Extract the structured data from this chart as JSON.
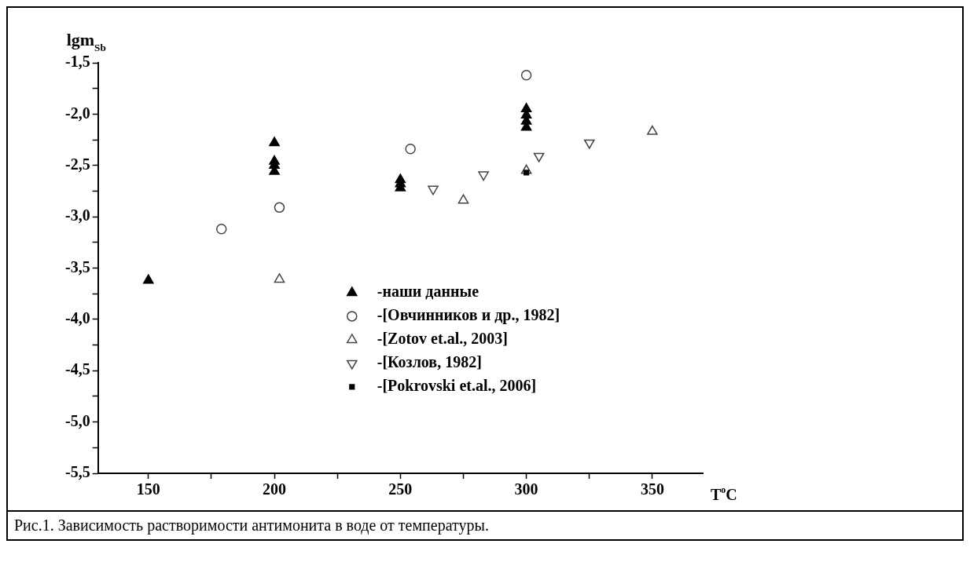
{
  "chart_data": {
    "type": "scatter",
    "xlabel": "T$^{o}$C",
    "ylabel": "lgm$_{Sb}$",
    "xlim": [
      130,
      370
    ],
    "ylim": [
      -5.5,
      -1.5
    ],
    "xticks": [
      150,
      {
        "value": 175,
        "label": null
      },
      200,
      {
        "value": 225,
        "label": null
      },
      250,
      {
        "value": 275,
        "label": null
      },
      300,
      {
        "value": 325,
        "label": null
      },
      350
    ],
    "yticks": [
      {
        "value": -5.5,
        "label": "-5,5"
      },
      {
        "value": -5.25,
        "label": null
      },
      {
        "value": -5,
        "label": "-5,0"
      },
      {
        "value": -4.75,
        "label": null
      },
      {
        "value": -4.5,
        "label": "-4,5"
      },
      {
        "value": -4.25,
        "label": null
      },
      {
        "value": -4,
        "label": "-4,0"
      },
      {
        "value": -3.75,
        "label": null
      },
      {
        "value": -3.5,
        "label": "-3,5"
      },
      {
        "value": -3.25,
        "label": null
      },
      {
        "value": -3,
        "label": "-3,0"
      },
      {
        "value": -2.75,
        "label": null
      },
      {
        "value": -2.5,
        "label": "-2,5"
      },
      {
        "value": -2.25,
        "label": null
      },
      {
        "value": -2,
        "label": "-2,0"
      },
      {
        "value": -1.75,
        "label": null
      },
      {
        "value": -1.5,
        "label": "-1,5"
      }
    ],
    "grid": false,
    "legend": "bottom",
    "series": [
      {
        "name": "-наши данные",
        "color": "#000000",
        "marker": "triangle",
        "x": [
          150,
          200,
          200,
          200,
          200,
          250,
          250,
          250,
          300,
          300,
          300,
          300
        ],
        "values": [
          -3.62,
          -2.28,
          -2.46,
          -2.5,
          -2.56,
          -2.64,
          -2.68,
          -2.72,
          -1.95,
          -2.01,
          -2.07,
          -2.13
        ]
      },
      {
        "name": "-[Овчинников и др., 1982]",
        "color": "#444444",
        "marker": "circle-open",
        "x": [
          179,
          202,
          254,
          300
        ],
        "values": [
          -3.12,
          -2.91,
          -2.34,
          -1.62
        ]
      },
      {
        "name": "-[Zotov et.al., 2003]",
        "color": "#444444",
        "marker": "triangle-open",
        "x": [
          202,
          275,
          300,
          350
        ],
        "values": [
          -3.61,
          -2.84,
          -2.55,
          -2.17
        ]
      },
      {
        "name": "-[Козлов, 1982]",
        "color": "#444444",
        "marker": "triangle-down-open",
        "x": [
          263,
          283,
          305,
          325
        ],
        "values": [
          -2.73,
          -2.59,
          -2.41,
          -2.28
        ]
      },
      {
        "name": "-[Pokrovski et.al., 2006]",
        "color": "#000000",
        "marker": "square",
        "x": [
          300
        ],
        "values": [
          -2.57
        ]
      }
    ],
    "annotations": [
      "Рис.1. Зависимость растворимости антимонита в воде от температуры."
    ]
  }
}
